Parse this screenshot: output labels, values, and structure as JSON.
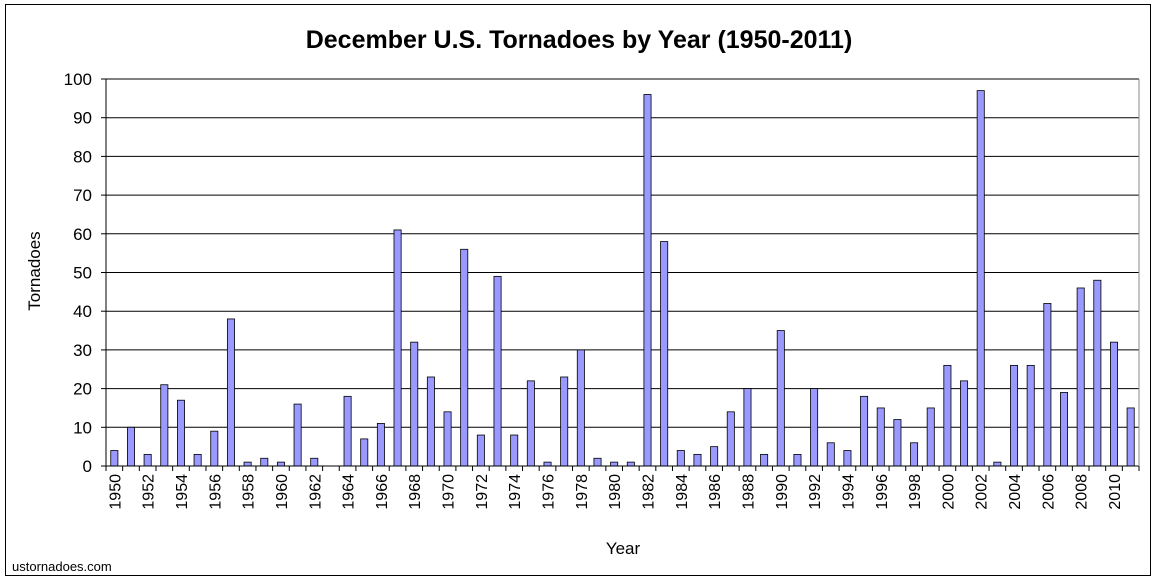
{
  "chart_data": {
    "type": "bar",
    "title": "December U.S. Tornadoes by Year (1950-2011)",
    "xlabel": "Year",
    "ylabel": "Tornadoes",
    "ylim": [
      0,
      100
    ],
    "yticks": [
      0,
      10,
      20,
      30,
      40,
      50,
      60,
      70,
      80,
      90,
      100
    ],
    "grid": true,
    "bar_color": "#9999ff",
    "categories": [
      1950,
      1951,
      1952,
      1953,
      1954,
      1955,
      1956,
      1957,
      1958,
      1959,
      1960,
      1961,
      1962,
      1963,
      1964,
      1965,
      1966,
      1967,
      1968,
      1969,
      1970,
      1971,
      1972,
      1973,
      1974,
      1975,
      1976,
      1977,
      1978,
      1979,
      1980,
      1981,
      1982,
      1983,
      1984,
      1985,
      1986,
      1987,
      1988,
      1989,
      1990,
      1991,
      1992,
      1993,
      1994,
      1995,
      1996,
      1997,
      1998,
      1999,
      2000,
      2001,
      2002,
      2003,
      2004,
      2005,
      2006,
      2007,
      2008,
      2009,
      2010,
      2011
    ],
    "values": [
      4,
      10,
      3,
      21,
      17,
      3,
      9,
      38,
      1,
      2,
      1,
      16,
      2,
      0,
      18,
      7,
      11,
      61,
      32,
      23,
      14,
      56,
      8,
      49,
      8,
      22,
      1,
      23,
      30,
      2,
      1,
      1,
      96,
      58,
      4,
      3,
      5,
      14,
      20,
      3,
      35,
      3,
      20,
      6,
      4,
      18,
      15,
      12,
      6,
      15,
      26,
      22,
      97,
      1,
      26,
      26,
      42,
      19,
      46,
      48,
      32,
      15
    ],
    "tick_labels": [
      "1950",
      "1952",
      "1954",
      "1956",
      "1958",
      "1960",
      "1962",
      "1964",
      "1966",
      "1968",
      "1970",
      "1972",
      "1974",
      "1976",
      "1978",
      "1980",
      "1982",
      "1984",
      "1986",
      "1988",
      "1990",
      "1992",
      "1994",
      "1996",
      "1998",
      "2000",
      "2002",
      "2004",
      "2006",
      "2008",
      "2010"
    ]
  },
  "source": "ustornadoes.com"
}
